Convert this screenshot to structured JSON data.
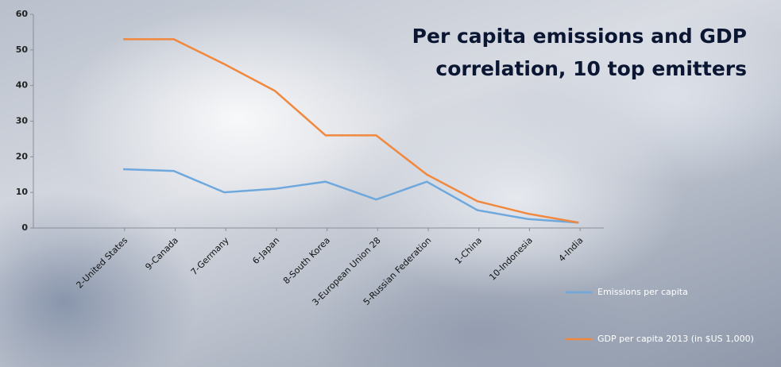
{
  "chart_data": {
    "type": "line",
    "title": "Per capita emissions and GDP correlation, 10 top emitters",
    "categories": [
      "2-United States",
      "9-Canada",
      "7-Germany",
      "6-Japan",
      "8-South Korea",
      "3-European Union 28",
      "5-Russian Federation",
      "1-China",
      "10-Indonesia",
      "4-India"
    ],
    "series": [
      {
        "name": "Emissions per capita",
        "color": "#6fa8dc",
        "values": [
          16.5,
          16,
          10,
          11,
          13,
          8,
          13,
          5,
          2.5,
          1.5
        ]
      },
      {
        "name": "GDP per capita 2013 (in $US 1,000)",
        "color": "#f0883e",
        "values": [
          53,
          53,
          46,
          38.5,
          26,
          26,
          15,
          7.5,
          4,
          1.5
        ]
      }
    ],
    "ylim": [
      0,
      60
    ],
    "yticks": [
      0,
      10,
      20,
      30,
      40,
      50,
      60
    ]
  }
}
